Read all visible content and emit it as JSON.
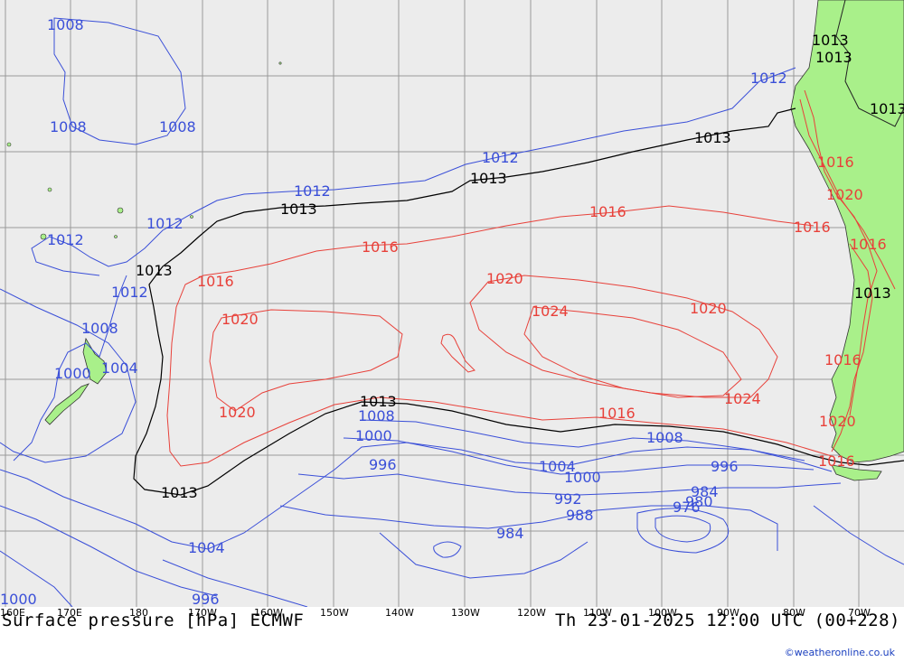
{
  "title_left": "Surface pressure [hPa] ECMWF",
  "title_right": "Th 23-01-2025 12:00 UTC (00+228)",
  "credit": "©weatheronline.co.uk",
  "colors": {
    "ocean": "#ececec",
    "land": "#a9f08a",
    "low": "#3a4fd8",
    "high": "#e8413a",
    "standard": "#000000",
    "grid": "#9a9a9a"
  },
  "lon_ticks": [
    "160E",
    "170E",
    "180",
    "170W",
    "160W",
    "150W",
    "140W",
    "130W",
    "120W",
    "110W",
    "100W",
    "90W",
    "80W",
    "70W"
  ],
  "isobar_labels": {
    "blue": [
      "1008",
      "1008",
      "1008",
      "1012",
      "1012",
      "1012",
      "1012",
      "1012",
      "1012",
      "1008",
      "1000",
      "1004",
      "1008",
      "1000",
      "996",
      "1004",
      "1000",
      "1008",
      "996",
      "1004",
      "992",
      "988",
      "984",
      "984",
      "980",
      "976",
      "996",
      "1000"
    ],
    "black": [
      "1013",
      "1013",
      "1013",
      "1013",
      "1013",
      "1013",
      "1013",
      "1013",
      "1013",
      "1013"
    ],
    "red": [
      "1016",
      "1016",
      "1016",
      "1016",
      "1016",
      "1016",
      "1016",
      "1016",
      "1016",
      "1020",
      "1020",
      "1020",
      "1020",
      "1020",
      "1024",
      "1024",
      "1020"
    ]
  }
}
